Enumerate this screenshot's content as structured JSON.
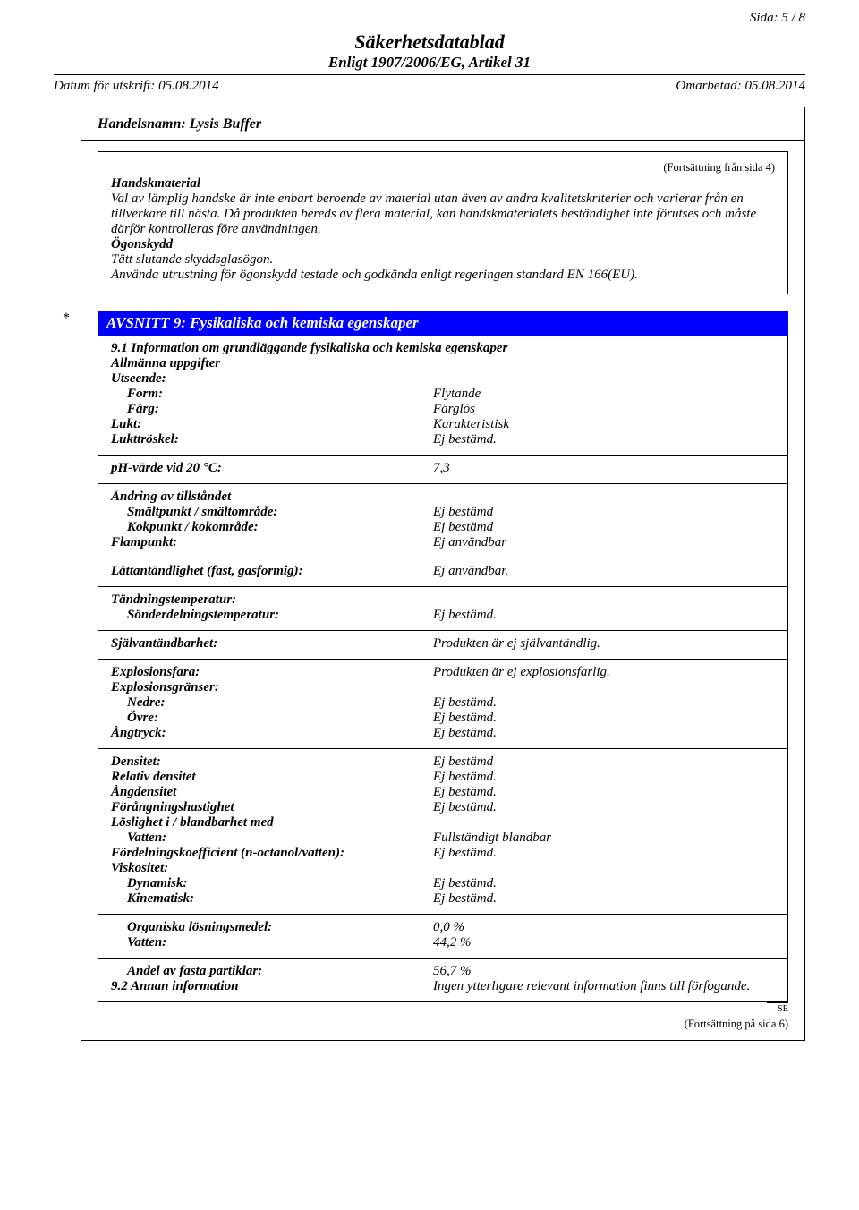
{
  "page_label": "Sida: 5 / 8",
  "title": "Säkerhetsdatablad",
  "subtitle": "Enligt 1907/2006/EG, Artikel 31",
  "print_date": "Datum för utskrift: 05.08.2014",
  "revised": "Omarbetad: 05.08.2014",
  "tradename": "Handelsnamn: Lysis Buffer",
  "cont_from": "(Fortsättning från sida 4)",
  "sec8": {
    "hand_label": "Handskmaterial",
    "hand_p1": "Val av lämplig handske är inte enbart beroende av material utan även av andra kvalitetskriterier och varierar från en tillverkare till nästa. Då produkten bereds av flera material, kan handskmaterialets beständighet inte förutses och måste därför kontrolleras före användningen.",
    "eye_label": "Ögonskydd",
    "eye_p1": "Tätt slutande skyddsglasögon.",
    "eye_p2": "Använda utrustning för ögonskydd testade och godkända enligt regeringen standard EN 166(EU)."
  },
  "sec9_title": "AVSNITT 9: Fysikaliska och kemiska egenskaper",
  "sec9": {
    "heading91": "9.1 Information om grundläggande fysikaliska och kemiska egenskaper",
    "general": "Allmänna uppgifter",
    "appearance_label": "Utseende:",
    "form_label": "Form:",
    "form_val": "Flytande",
    "color_label": "Färg:",
    "color_val": "Färglös",
    "odor_label": "Lukt:",
    "odor_val": "Karakteristisk",
    "odor_thresh_label": "Lukttröskel:",
    "odor_thresh_val": "Ej bestämd.",
    "ph_label": "pH-värde vid 20 °C:",
    "ph_val": "7,3",
    "change_label": "Ändring av tillståndet",
    "melt_label": "Smältpunkt / smältområde:",
    "melt_val": "Ej bestämd",
    "boil_label": "Kokpunkt / kokområde:",
    "boil_val": "Ej bestämd",
    "flash_label": "Flampunkt:",
    "flash_val": "Ej användbar",
    "flammability_label": "Lättantändlighet (fast, gasformig):",
    "flammability_val": "Ej användbar.",
    "ignition_temp_label": "Tändningstemperatur:",
    "decomp_label": "Sönderdelningstemperatur:",
    "decomp_val": "Ej bestämd.",
    "selfign_label": "Självantändbarhet:",
    "selfign_val": "Produkten är ej självantändlig.",
    "expl_haz_label": "Explosionsfara:",
    "expl_haz_val": "Produkten är ej explosionsfarlig.",
    "expl_limits_label": "Explosionsgränser:",
    "lower_label": "Nedre:",
    "lower_val": "Ej bestämd.",
    "upper_label": "Övre:",
    "upper_val": "Ej bestämd.",
    "vapor_press_label": "Ångtryck:",
    "vapor_press_val": "Ej bestämd.",
    "density_label": "Densitet:",
    "density_val": "Ej bestämd",
    "rel_density_label": "Relativ densitet",
    "rel_density_val": "Ej bestämd.",
    "vapor_density_label": "Ångdensitet",
    "vapor_density_val": "Ej bestämd.",
    "evap_label": "Förångningshastighet",
    "evap_val": "Ej bestämd.",
    "solubility_label": "Löslighet i / blandbarhet med",
    "water_label": "Vatten:",
    "water_val": "Fullständigt blandbar",
    "partition_label": "Fördelningskoefficient (n-octanol/vatten):",
    "partition_val": "Ej bestämd.",
    "viscosity_label": "Viskositet:",
    "dynamic_label": "Dynamisk:",
    "dynamic_val": "Ej bestämd.",
    "kinematic_label": "Kinematisk:",
    "kinematic_val": "Ej bestämd.",
    "org_solv_label": "Organiska lösningsmedel:",
    "org_solv_val": "0,0 %",
    "water2_label": "Vatten:",
    "water2_val": "44,2 %",
    "solid_label": "Andel av fasta partiklar:",
    "solid_val": "56,7 %",
    "heading92": "9.2 Annan information",
    "other_val": "Ingen ytterligare relevant information finns till förfogande."
  },
  "cont_next": "(Fortsättning på sida 6)",
  "lang_mark": "SE"
}
